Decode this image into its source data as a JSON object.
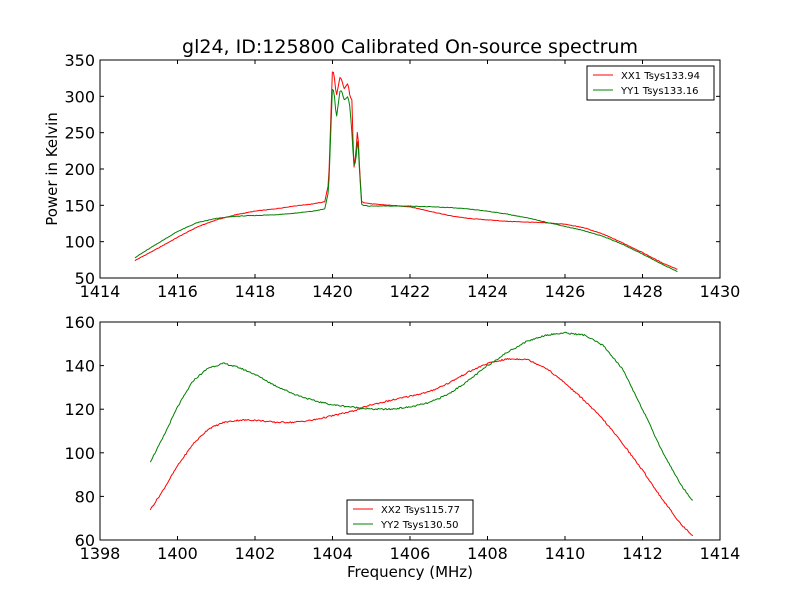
{
  "chart_data": [
    {
      "type": "line",
      "title": "gl24, ID:125800 Calibrated On-source spectrum",
      "xlabel": "",
      "ylabel": "Power in Kelvin",
      "xlim": [
        1414,
        1430
      ],
      "ylim": [
        50,
        350
      ],
      "xticks": [
        1414,
        1416,
        1418,
        1420,
        1422,
        1424,
        1426,
        1428,
        1430
      ],
      "yticks": [
        50,
        100,
        150,
        200,
        250,
        300,
        350
      ],
      "legend_position": "top-right",
      "grid": false,
      "series": [
        {
          "name": "XX1 Tsys133.94",
          "color": "#ff0000",
          "x": [
            1414.9,
            1415.5,
            1416.0,
            1416.5,
            1417.0,
            1417.5,
            1418.0,
            1418.5,
            1419.0,
            1419.5,
            1419.8,
            1419.9,
            1420.0,
            1420.05,
            1420.1,
            1420.2,
            1420.25,
            1420.3,
            1420.4,
            1420.45,
            1420.5,
            1420.55,
            1420.6,
            1420.65,
            1420.7,
            1420.75,
            1420.8,
            1420.9,
            1421.0,
            1421.5,
            1422.0,
            1422.5,
            1423.0,
            1423.5,
            1424.0,
            1424.5,
            1425.0,
            1425.5,
            1426.0,
            1426.5,
            1427.0,
            1427.5,
            1428.0,
            1428.5,
            1428.9
          ],
          "y": [
            74,
            91,
            106,
            120,
            130,
            137,
            142,
            145,
            149,
            152,
            155,
            180,
            340,
            325,
            300,
            328,
            320,
            310,
            318,
            300,
            295,
            200,
            220,
            258,
            200,
            156,
            154,
            153,
            152,
            150,
            148,
            142,
            136,
            132,
            130,
            128,
            127,
            126,
            124,
            119,
            110,
            98,
            85,
            71,
            62
          ]
        },
        {
          "name": "YY1 Tsys133.16",
          "color": "#008000",
          "x": [
            1414.9,
            1415.5,
            1416.0,
            1416.5,
            1417.0,
            1417.5,
            1418.0,
            1418.5,
            1419.0,
            1419.5,
            1419.8,
            1419.9,
            1420.0,
            1420.05,
            1420.1,
            1420.2,
            1420.25,
            1420.3,
            1420.4,
            1420.45,
            1420.5,
            1420.55,
            1420.6,
            1420.65,
            1420.7,
            1420.75,
            1420.8,
            1420.9,
            1421.0,
            1421.5,
            1422.0,
            1422.5,
            1423.0,
            1423.5,
            1424.0,
            1424.5,
            1425.0,
            1425.5,
            1426.0,
            1426.5,
            1427.0,
            1427.5,
            1428.0,
            1428.5,
            1428.9
          ],
          "y": [
            78,
            98,
            114,
            126,
            132,
            135,
            136,
            137,
            139,
            142,
            145,
            170,
            315,
            300,
            270,
            310,
            305,
            295,
            300,
            285,
            250,
            205,
            210,
            245,
            195,
            152,
            150,
            149,
            149,
            149,
            149,
            148,
            147,
            145,
            142,
            138,
            133,
            127,
            121,
            115,
            107,
            96,
            83,
            69,
            59
          ]
        }
      ]
    },
    {
      "type": "line",
      "title": "",
      "xlabel": "Frequency (MHz)",
      "ylabel": "",
      "xlim": [
        1398,
        1414
      ],
      "ylim": [
        60,
        160
      ],
      "xticks": [
        1398,
        1400,
        1402,
        1404,
        1406,
        1408,
        1410,
        1412,
        1414
      ],
      "yticks": [
        60,
        80,
        100,
        120,
        140,
        160
      ],
      "legend_position": "bottom-center",
      "grid": false,
      "series": [
        {
          "name": "XX2 Tsys115.77",
          "color": "#ff0000",
          "x": [
            1399.3,
            1399.6,
            1400.0,
            1400.4,
            1400.8,
            1401.2,
            1401.6,
            1402.0,
            1402.5,
            1403.0,
            1403.5,
            1404.0,
            1404.5,
            1405.0,
            1405.5,
            1406.0,
            1406.5,
            1407.0,
            1407.5,
            1408.0,
            1408.5,
            1409.0,
            1409.5,
            1410.0,
            1410.5,
            1411.0,
            1411.5,
            1412.0,
            1412.5,
            1413.0,
            1413.3
          ],
          "y": [
            74,
            82,
            94,
            104,
            111,
            114,
            115,
            115,
            114,
            114,
            115,
            117,
            119,
            122,
            124,
            126,
            128,
            132,
            137,
            141,
            143,
            143,
            139,
            132,
            124,
            115,
            104,
            92,
            79,
            67,
            62
          ]
        },
        {
          "name": "YY2 Tsys130.50",
          "color": "#008000",
          "x": [
            1399.3,
            1399.6,
            1400.0,
            1400.4,
            1400.8,
            1401.2,
            1401.6,
            1402.0,
            1402.5,
            1403.0,
            1403.5,
            1404.0,
            1404.5,
            1405.0,
            1405.5,
            1406.0,
            1406.5,
            1407.0,
            1407.5,
            1408.0,
            1408.5,
            1409.0,
            1409.5,
            1410.0,
            1410.5,
            1411.0,
            1411.5,
            1412.0,
            1412.5,
            1413.0,
            1413.3
          ],
          "y": [
            96,
            106,
            121,
            133,
            139,
            141,
            139,
            136,
            131,
            127,
            124,
            122,
            121,
            120,
            120,
            121,
            123,
            127,
            133,
            140,
            146,
            151,
            154,
            155,
            154,
            149,
            138,
            120,
            101,
            85,
            78
          ]
        }
      ]
    }
  ]
}
